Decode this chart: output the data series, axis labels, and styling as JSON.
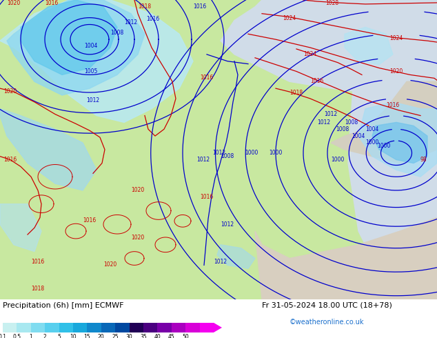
{
  "title_left": "Precipitation (6h) [mm] ECMWF",
  "title_right": "Fr 31-05-2024 18.00 UTC (18+78)",
  "credit": "©weatheronline.co.uk",
  "colorbar_values": [
    "0.1",
    "0.5",
    "1",
    "2",
    "5",
    "10",
    "15",
    "20",
    "25",
    "30",
    "35",
    "40",
    "45",
    "50"
  ],
  "colorbar_colors": [
    "#c8f0f0",
    "#a0e4ee",
    "#78d4ec",
    "#50c4e8",
    "#28b0e0",
    "#1090d0",
    "#0870c0",
    "#0050a8",
    "#003080",
    "#100040",
    "#380065",
    "#68009a",
    "#9800b8",
    "#c800d0",
    "#f000e8"
  ],
  "land_color": "#c8e8a0",
  "sea_color": "#c8dce8",
  "precip_color_light": "#a0dff0",
  "precip_color_mid": "#60c8e8",
  "precip_color_dark": "#30a8d8",
  "figsize": [
    6.34,
    4.9
  ],
  "dpi": 100,
  "text_color": "#000000",
  "title_fontsize": 8,
  "credit_color": "#1a6fcc",
  "blue_contour": "#0000cc",
  "red_contour": "#cc0000"
}
